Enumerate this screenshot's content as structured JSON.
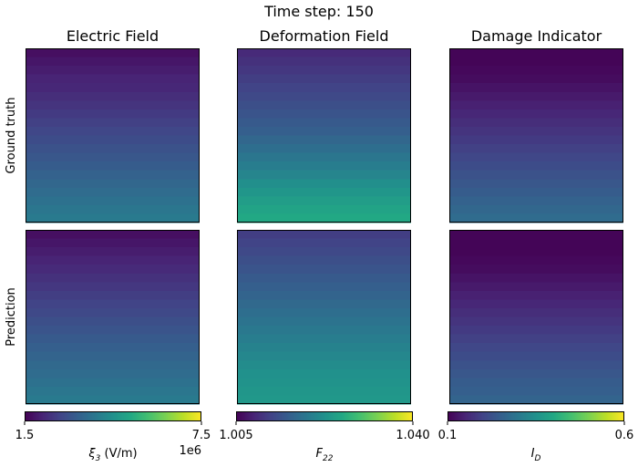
{
  "suptitle": "Time step: 150",
  "colors": {
    "viridis": [
      "#440154",
      "#482475",
      "#414487",
      "#355f8d",
      "#2a788e",
      "#21918c",
      "#22a884",
      "#44bf70",
      "#7ad151",
      "#bddf26",
      "#fde725"
    ]
  },
  "chart_data": {
    "type": "heatmap",
    "suptitle": "Time step: 150",
    "columns": [
      {
        "title": "Electric Field",
        "colormap": "viridis",
        "colorbar": {
          "vmin_label": "1.5",
          "vmax_label": "7.5",
          "offset_label": "1e6",
          "label": "ξ₃ (V/m)",
          "label_base": "ξ",
          "label_sub": "3",
          "label_suffix": " (V/m)",
          "range": [
            1.5,
            7.5
          ]
        }
      },
      {
        "title": "Deformation Field",
        "colormap": "viridis",
        "colorbar": {
          "vmin_label": "1.005",
          "vmax_label": "1.040",
          "label": "F₂₂",
          "label_base": "F",
          "label_sub": "22",
          "label_suffix": "",
          "range": [
            1.005,
            1.04
          ]
        }
      },
      {
        "title": "Damage Indicator",
        "colormap": "viridis",
        "colorbar": {
          "vmin_label": "0.1",
          "vmax_label": "0.6",
          "label": "I_D",
          "label_base": "I",
          "label_sub": "D",
          "label_suffix": "",
          "range": [
            0.1,
            0.6
          ]
        }
      }
    ],
    "rows": [
      {
        "label": "Ground truth"
      },
      {
        "label": "Prediction"
      }
    ],
    "note": "Each panel is a field map with values varying mainly along the vertical axis; values below are normalized colour levels (0 = vmin, 1 = vmax) per row band from top to bottom.",
    "panels": [
      [
        {
          "levels": [
            0.04,
            0.06,
            0.08,
            0.1,
            0.11,
            0.13,
            0.15,
            0.17,
            0.19,
            0.21,
            0.23,
            0.25,
            0.27,
            0.29,
            0.31,
            0.33,
            0.35,
            0.37,
            0.39,
            0.41
          ]
        },
        {
          "levels": [
            0.12,
            0.14,
            0.16,
            0.18,
            0.2,
            0.22,
            0.24,
            0.26,
            0.28,
            0.3,
            0.33,
            0.36,
            0.39,
            0.42,
            0.45,
            0.49,
            0.52,
            0.55,
            0.58,
            0.6
          ]
        },
        {
          "levels": [
            0.01,
            0.01,
            0.02,
            0.03,
            0.05,
            0.07,
            0.09,
            0.11,
            0.13,
            0.15,
            0.17,
            0.19,
            0.21,
            0.23,
            0.25,
            0.27,
            0.29,
            0.31,
            0.33,
            0.35
          ]
        }
      ],
      [
        {
          "levels": [
            0.04,
            0.06,
            0.08,
            0.1,
            0.12,
            0.14,
            0.16,
            0.18,
            0.2,
            0.22,
            0.24,
            0.26,
            0.28,
            0.3,
            0.32,
            0.34,
            0.35,
            0.37,
            0.39,
            0.41
          ]
        },
        {
          "levels": [
            0.18,
            0.2,
            0.22,
            0.24,
            0.26,
            0.28,
            0.3,
            0.32,
            0.34,
            0.36,
            0.38,
            0.4,
            0.42,
            0.44,
            0.46,
            0.48,
            0.5,
            0.51,
            0.52,
            0.53
          ]
        },
        {
          "levels": [
            0.01,
            0.01,
            0.01,
            0.02,
            0.03,
            0.05,
            0.07,
            0.09,
            0.11,
            0.13,
            0.15,
            0.17,
            0.19,
            0.21,
            0.23,
            0.25,
            0.27,
            0.29,
            0.3,
            0.32
          ]
        }
      ]
    ]
  }
}
